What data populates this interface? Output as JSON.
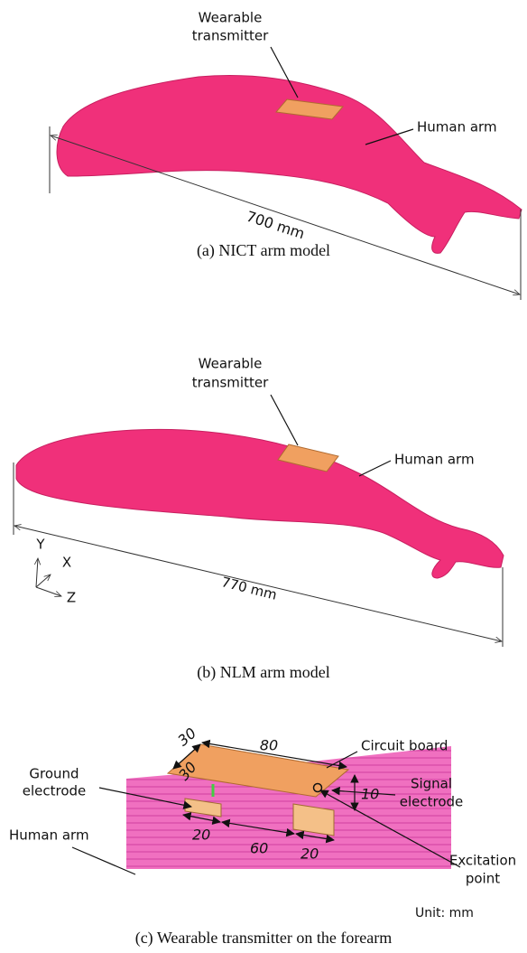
{
  "panels": [
    {
      "caption": "(a) NICT arm model",
      "transmitter_label": [
        "Wearable",
        "transmitter"
      ],
      "arm_label": "Human arm",
      "length": "700 mm"
    },
    {
      "caption": "(b) NLM arm model",
      "transmitter_label": [
        "Wearable",
        "transmitter"
      ],
      "arm_label": "Human arm",
      "length": "770 mm",
      "axes": [
        "Y",
        "X",
        "Z"
      ]
    },
    {
      "caption": "(c) Wearable transmitter on the forearm",
      "dimensions": [
        "30",
        "80",
        "30",
        "10",
        "20",
        "60",
        "20"
      ],
      "circuit_board": "Circuit board",
      "ground_electrode": [
        "Ground",
        "electrode"
      ],
      "signal_electrode": [
        "Signal",
        "electrode"
      ],
      "arm_label": "Human arm",
      "excitation_point": [
        "Excitation",
        "point"
      ],
      "unit": "Unit: mm"
    }
  ]
}
